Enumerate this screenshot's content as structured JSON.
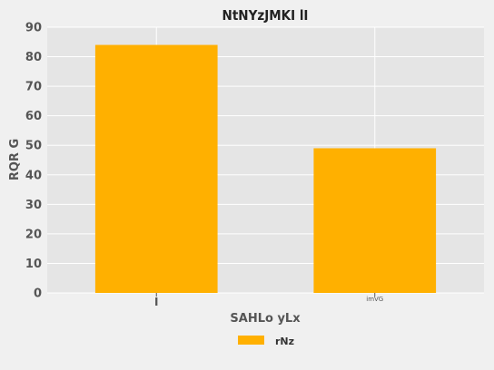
{
  "chart_data": {
    "type": "bar",
    "title": "NtNYzJMKI lI",
    "xlabel": "SAHLo yLx",
    "ylabel": "RQR G",
    "categories": [
      "I",
      "imVG"
    ],
    "series": [
      {
        "name": "rNz",
        "values": [
          84,
          49
        ],
        "color": "#FFB000"
      }
    ],
    "ylim": [
      0,
      90
    ],
    "yticks": [
      0,
      10,
      20,
      30,
      40,
      50,
      60,
      70,
      80,
      90
    ],
    "grid": true,
    "legend_position": "bottom-center",
    "plot_background": "#e5e5e5",
    "page_background": "#f0f0f0"
  }
}
